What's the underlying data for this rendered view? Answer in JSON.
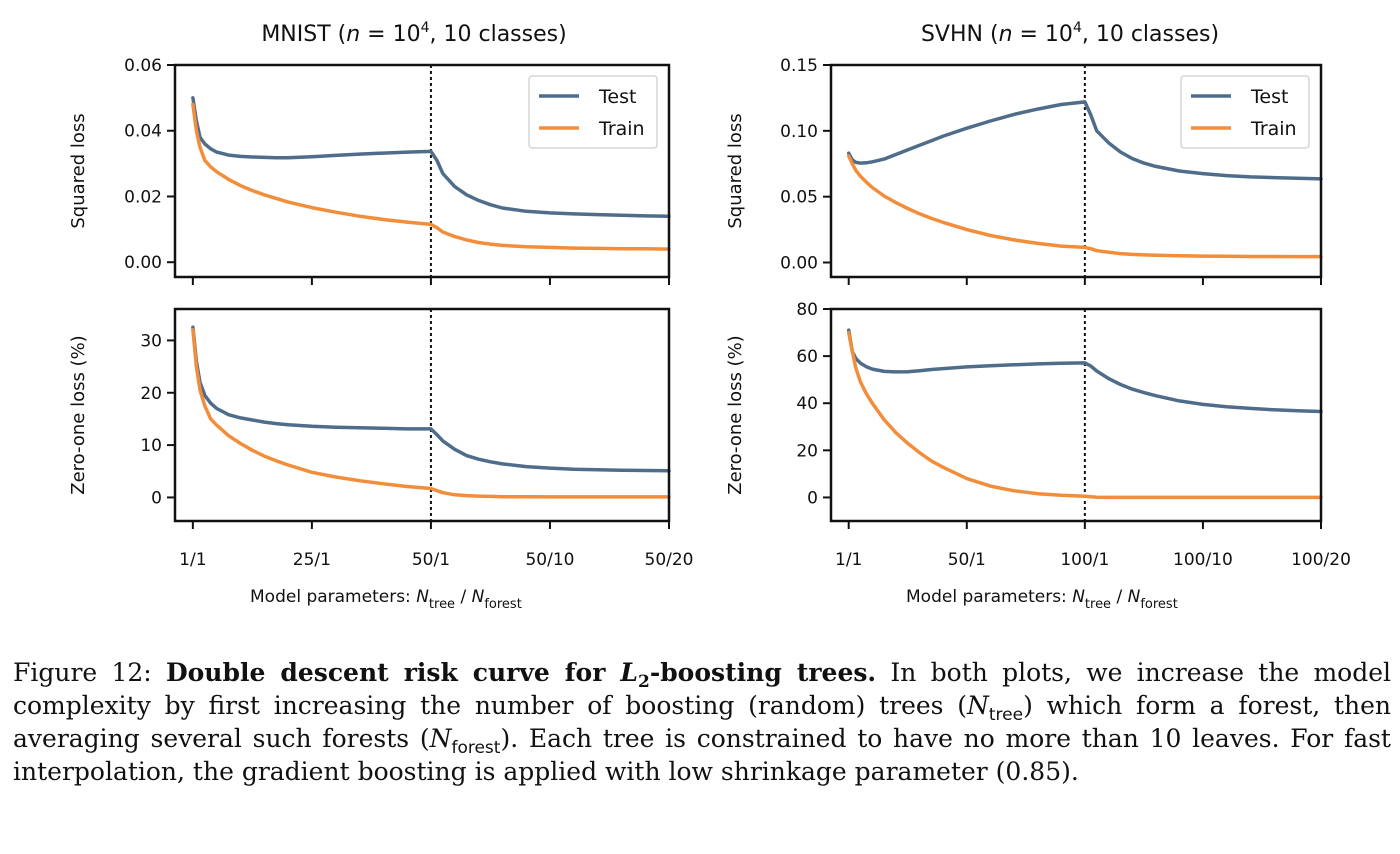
{
  "figure_caption": {
    "label": "Figure 12:",
    "bold_lead": "Double descent risk curve for",
    "bold_math": "L",
    "bold_math_sub": "2",
    "bold_tail": "-boosting trees.",
    "s1": "In both plots, we increase the model complexity by first increasing the number of boosting (random) trees (",
    "n_tree": "N",
    "n_tree_sub": "tree",
    "s2": ") which form a forest, then averaging several such forests (",
    "n_forest": "N",
    "n_forest_sub": "forest",
    "s3": "). Each tree is constrained to have no more than 10 leaves. For fast interpolation, the gradient boosting is applied with low shrinkage parameter (0.85)."
  },
  "colors": {
    "test": "#4f6d8a",
    "train": "#f28e3b",
    "axis": "#111111"
  },
  "chart_data": [
    {
      "type": "line",
      "title": "MNIST (n = 10^4, 10 classes)",
      "title_parts": {
        "pre": "MNIST (",
        "n": "n",
        "eq": " = 10",
        "sup": "4",
        "post": ", 10 classes)"
      },
      "ylabel": "Squared loss",
      "xlabel": "Model parameters: N_tree / N_forest",
      "ylim": [
        -0.0045,
        0.06
      ],
      "yticks": [
        "0.00",
        "0.02",
        "0.04",
        "0.06"
      ],
      "ytick_values": [
        0,
        0.02,
        0.04,
        0.06
      ],
      "xlim": [
        -1.5,
        40
      ],
      "xticks": [
        "1/1",
        "25/1",
        "50/1",
        "50/10",
        "50/20"
      ],
      "xtick_positions": [
        0,
        10,
        20,
        30,
        40
      ],
      "vline_at": "50/1",
      "legend": "top-right",
      "series": [
        {
          "name": "Test",
          "x": [
            0,
            0.3,
            0.6,
            1,
            1.5,
            2,
            3,
            4,
            5,
            6,
            7,
            8,
            10,
            12,
            14,
            16,
            18,
            20,
            20.5,
            21,
            22,
            23,
            24,
            25,
            26,
            28,
            30,
            32,
            34,
            36,
            38,
            40
          ],
          "y": [
            0.05,
            0.043,
            0.038,
            0.036,
            0.0345,
            0.0335,
            0.0326,
            0.0322,
            0.032,
            0.0319,
            0.0318,
            0.0318,
            0.0321,
            0.0325,
            0.0329,
            0.0332,
            0.0335,
            0.0337,
            0.031,
            0.027,
            0.023,
            0.0205,
            0.0188,
            0.0175,
            0.0165,
            0.0155,
            0.015,
            0.0147,
            0.0145,
            0.0143,
            0.0141,
            0.014
          ]
        },
        {
          "name": "Train",
          "x": [
            0,
            0.3,
            0.6,
            1,
            1.5,
            2,
            3,
            4,
            5,
            6,
            7,
            8,
            10,
            12,
            14,
            16,
            18,
            20,
            20.5,
            21,
            22,
            23,
            24,
            25,
            26,
            28,
            30,
            32,
            34,
            36,
            38,
            40
          ],
          "y": [
            0.048,
            0.04,
            0.035,
            0.031,
            0.029,
            0.0275,
            0.0252,
            0.0233,
            0.0218,
            0.0205,
            0.0194,
            0.0183,
            0.0166,
            0.0152,
            0.014,
            0.013,
            0.0122,
            0.0115,
            0.0105,
            0.0092,
            0.0078,
            0.0068,
            0.006,
            0.0055,
            0.0051,
            0.0047,
            0.0045,
            0.0043,
            0.0042,
            0.0041,
            0.0041,
            0.004
          ]
        }
      ]
    },
    {
      "type": "line",
      "ylabel": "Zero-one loss (%)",
      "ylim": [
        -4.5,
        36
      ],
      "yticks": [
        "0",
        "10",
        "20",
        "30"
      ],
      "ytick_values": [
        0,
        10,
        20,
        30
      ],
      "xlim": [
        -1.5,
        40
      ],
      "xticks": [
        "1/1",
        "25/1",
        "50/1",
        "50/10",
        "50/20"
      ],
      "xtick_positions": [
        0,
        10,
        20,
        30,
        40
      ],
      "vline_at": "50/1",
      "series": [
        {
          "name": "Test",
          "x": [
            0,
            0.3,
            0.6,
            1,
            1.5,
            2,
            3,
            4,
            5,
            6,
            7,
            8,
            10,
            12,
            14,
            16,
            18,
            20,
            20.5,
            21,
            22,
            23,
            24,
            25,
            26,
            28,
            30,
            32,
            34,
            36,
            38,
            40
          ],
          "y": [
            32.5,
            26,
            22,
            19.5,
            18,
            17,
            15.8,
            15.2,
            14.8,
            14.4,
            14.1,
            13.9,
            13.6,
            13.4,
            13.3,
            13.2,
            13.1,
            13.1,
            12,
            10.8,
            9.2,
            8,
            7.3,
            6.8,
            6.4,
            5.9,
            5.6,
            5.4,
            5.3,
            5.2,
            5.15,
            5.1
          ]
        },
        {
          "name": "Train",
          "x": [
            0,
            0.3,
            0.6,
            1,
            1.5,
            2,
            3,
            4,
            5,
            6,
            7,
            8,
            10,
            12,
            14,
            16,
            18,
            20,
            20.5,
            21,
            22,
            23,
            24,
            25,
            26,
            28,
            30,
            32,
            34,
            36,
            38,
            40
          ],
          "y": [
            32,
            25,
            20.5,
            17.5,
            15,
            13.8,
            11.8,
            10.3,
            9,
            7.9,
            7,
            6.2,
            4.8,
            3.9,
            3.2,
            2.6,
            2.1,
            1.7,
            1.3,
            0.9,
            0.5,
            0.35,
            0.25,
            0.2,
            0.15,
            0.12,
            0.1,
            0.1,
            0.1,
            0.1,
            0.1,
            0.1
          ]
        }
      ]
    },
    {
      "type": "line",
      "title": "SVHN (n = 10^4, 10 classes)",
      "title_parts": {
        "pre": "SVHN (",
        "n": "n",
        "eq": " = 10",
        "sup": "4",
        "post": ", 10 classes)"
      },
      "ylabel": "Squared loss",
      "xlabel": "Model parameters: N_tree / N_forest",
      "ylim": [
        -0.011,
        0.15
      ],
      "yticks": [
        "0.00",
        "0.05",
        "0.10",
        "0.15"
      ],
      "ytick_values": [
        0,
        0.05,
        0.1,
        0.15
      ],
      "xlim": [
        -1.5,
        40
      ],
      "xticks": [
        "1/1",
        "50/1",
        "100/1",
        "100/10",
        "100/20"
      ],
      "xtick_positions": [
        0,
        10,
        20,
        30,
        40
      ],
      "vline_at": "100/1",
      "legend": "top-right",
      "series": [
        {
          "name": "Test",
          "x": [
            0,
            0.3,
            0.6,
            1,
            1.5,
            2,
            3,
            4,
            5,
            6,
            7,
            8,
            10,
            12,
            14,
            16,
            18,
            20,
            20.5,
            21,
            22,
            23,
            24,
            25,
            26,
            28,
            30,
            32,
            34,
            36,
            38,
            40
          ],
          "y": [
            0.083,
            0.078,
            0.076,
            0.0755,
            0.0757,
            0.0765,
            0.0785,
            0.082,
            0.0855,
            0.089,
            0.0925,
            0.096,
            0.102,
            0.1075,
            0.1125,
            0.1165,
            0.12,
            0.122,
            0.112,
            0.1,
            0.091,
            0.084,
            0.079,
            0.0755,
            0.073,
            0.0695,
            0.0675,
            0.066,
            0.065,
            0.0645,
            0.064,
            0.0635
          ]
        },
        {
          "name": "Train",
          "x": [
            0,
            0.3,
            0.6,
            1,
            1.5,
            2,
            3,
            4,
            5,
            6,
            7,
            8,
            10,
            12,
            14,
            16,
            18,
            20,
            20.5,
            21,
            22,
            23,
            24,
            25,
            26,
            28,
            30,
            32,
            34,
            36,
            38,
            40
          ],
          "y": [
            0.081,
            0.075,
            0.07,
            0.0655,
            0.061,
            0.057,
            0.0505,
            0.0455,
            0.041,
            0.037,
            0.0335,
            0.0305,
            0.025,
            0.0205,
            0.0172,
            0.0145,
            0.0125,
            0.0115,
            0.0105,
            0.009,
            0.0078,
            0.0068,
            0.0062,
            0.0058,
            0.0055,
            0.0051,
            0.0049,
            0.0047,
            0.0046,
            0.0046,
            0.0045,
            0.0045
          ]
        }
      ]
    },
    {
      "type": "line",
      "ylabel": "Zero-one loss (%)",
      "ylim": [
        -10,
        80
      ],
      "yticks": [
        "0",
        "20",
        "40",
        "60",
        "80"
      ],
      "ytick_values": [
        0,
        20,
        40,
        60,
        80
      ],
      "xlim": [
        -1.5,
        40
      ],
      "xticks": [
        "1/1",
        "50/1",
        "100/1",
        "100/10",
        "100/20"
      ],
      "xtick_positions": [
        0,
        10,
        20,
        30,
        40
      ],
      "vline_at": "100/1",
      "series": [
        {
          "name": "Test",
          "x": [
            0,
            0.3,
            0.6,
            1,
            1.5,
            2,
            3,
            4,
            5,
            6,
            7,
            8,
            10,
            12,
            14,
            16,
            18,
            20,
            20.5,
            21,
            22,
            23,
            24,
            25,
            26,
            28,
            30,
            32,
            34,
            36,
            38,
            40
          ],
          "y": [
            71,
            62,
            59,
            57,
            55.5,
            54.5,
            53.5,
            53.3,
            53.4,
            53.8,
            54.3,
            54.7,
            55.4,
            55.9,
            56.3,
            56.7,
            57,
            57.1,
            55.8,
            53.7,
            50.5,
            48,
            46,
            44.5,
            43.2,
            41,
            39.5,
            38.5,
            37.8,
            37.2,
            36.8,
            36.5
          ]
        },
        {
          "name": "Train",
          "x": [
            0,
            0.3,
            0.6,
            1,
            1.5,
            2,
            3,
            4,
            5,
            6,
            7,
            8,
            10,
            12,
            14,
            16,
            18,
            20,
            20.5,
            21,
            22,
            23,
            24,
            25,
            26,
            28,
            30,
            32,
            34,
            36,
            38,
            40
          ],
          "y": [
            70,
            62,
            55,
            49,
            44,
            40,
            33,
            27.5,
            23,
            19,
            15.5,
            12.8,
            8,
            4.8,
            2.8,
            1.6,
            0.9,
            0.5,
            0.3,
            0.1,
            0,
            0,
            0,
            0,
            0,
            0,
            0,
            0,
            0,
            0,
            0,
            0
          ]
        }
      ]
    }
  ]
}
